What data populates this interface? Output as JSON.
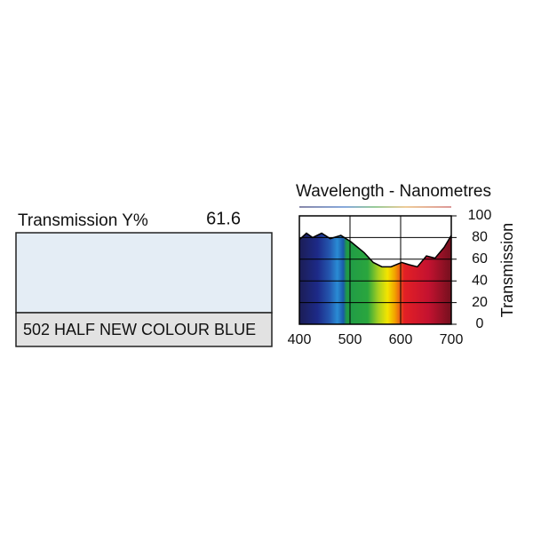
{
  "filter": {
    "label": "Transmission Y%",
    "value": "61.6",
    "name": "502 HALF NEW COLOUR BLUE",
    "swatch_color": "#e4edf5"
  },
  "chart_data": {
    "type": "line",
    "title": "Wavelength - Nanometres",
    "y_label": "Transmission",
    "x": [
      400,
      414,
      426,
      444,
      461,
      482,
      502,
      528,
      546,
      563,
      581,
      602,
      616,
      633,
      651,
      668,
      686,
      700
    ],
    "values": [
      78,
      84,
      80,
      84,
      79,
      82,
      76,
      66,
      57,
      53,
      53,
      57,
      55,
      53,
      63,
      61,
      71,
      82
    ],
    "color": "#000000",
    "xlim": [
      400,
      700
    ],
    "xticks": [
      400,
      500,
      600,
      700
    ],
    "ylim": [
      0,
      100
    ],
    "yticks": [
      0,
      20,
      40,
      60,
      80,
      100
    ],
    "grid": true
  }
}
